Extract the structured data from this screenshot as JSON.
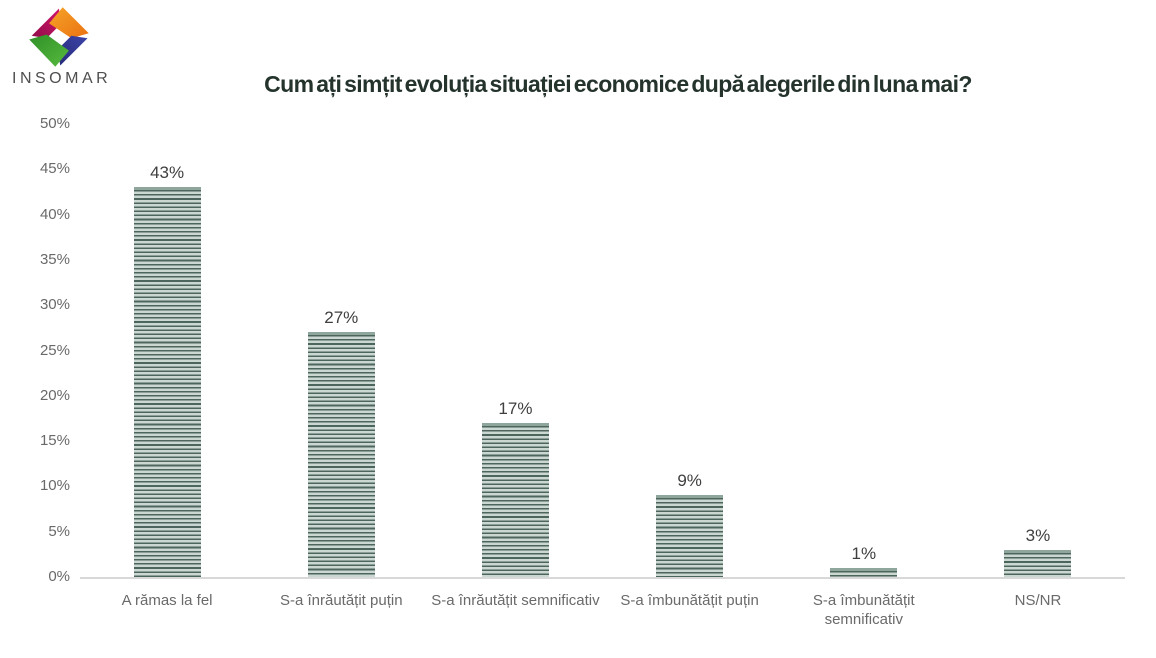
{
  "logo": {
    "text": "INSOMAR",
    "icon": "insomar-pinwheel-diamond",
    "colors": {
      "magenta": "#c1125f",
      "orange": "#f28b1f",
      "indigo": "#2f3590",
      "green": "#46aa35"
    }
  },
  "chart_data": {
    "type": "bar",
    "title": "Cum ați simțit evoluția situației economice după alegerile din luna mai?",
    "categories": [
      "A rămas la fel",
      "S-a înrăutățit puțin",
      "S-a înrăutățit semnificativ",
      "S-a îmbunătățit puțin",
      "S-a îmbunătățit\nsemnificativ",
      "NS/NR"
    ],
    "values": [
      43,
      27,
      17,
      9,
      1,
      3
    ],
    "data_labels": [
      "43%",
      "27%",
      "17%",
      "9%",
      "1%",
      "3%"
    ],
    "xlabel": "",
    "ylabel": "",
    "ylim": [
      0,
      50
    ],
    "ytick_step": 5,
    "ytick_labels": [
      "0%",
      "5%",
      "10%",
      "15%",
      "20%",
      "25%",
      "30%",
      "35%",
      "40%",
      "45%",
      "50%"
    ],
    "grid": false,
    "legend": false,
    "colors": {
      "title": "#24332c",
      "axis_line": "#d8d8d8",
      "tick_text": "#696969",
      "value_text": "#3f3f3f",
      "bar_stripe_dark": "#4d665d",
      "bar_stripe_light": "#cbd7d1",
      "bar_cap": "#8fa69d"
    }
  }
}
